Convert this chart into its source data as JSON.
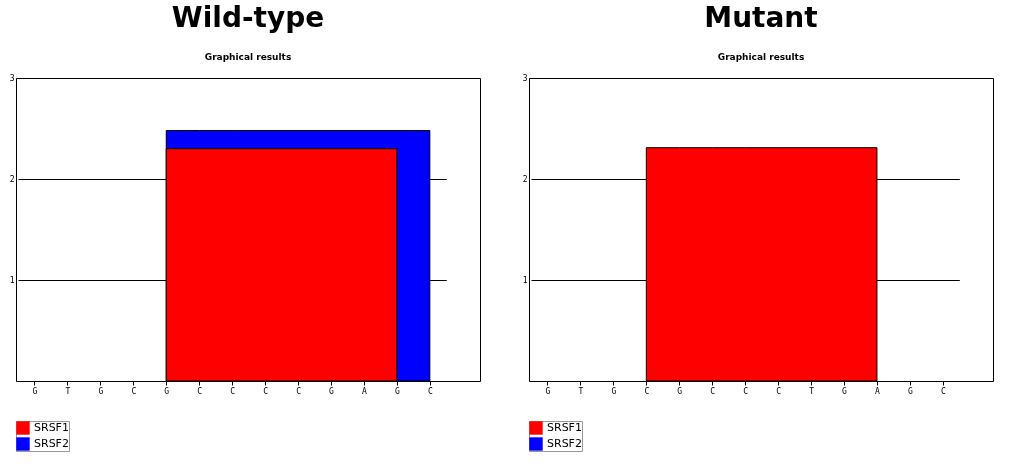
{
  "chart_data": [
    {
      "type": "area",
      "title": "Wild-type",
      "subtitle": "Graphical results",
      "categories": [
        "G",
        "T",
        "G",
        "C",
        "G",
        "C",
        "C",
        "C",
        "C",
        "G",
        "A",
        "G",
        "C"
      ],
      "series": [
        {
          "name": "SRSF1",
          "color": "#ff0000",
          "values": [
            null,
            null,
            null,
            null,
            2.3,
            2.3,
            2.3,
            2.3,
            2.3,
            2.3,
            2.3,
            2.3,
            null
          ]
        },
        {
          "name": "SRSF2",
          "color": "#0000ff",
          "values": [
            null,
            null,
            null,
            null,
            2.48,
            2.48,
            2.48,
            2.48,
            2.48,
            2.48,
            2.48,
            2.48,
            2.48
          ]
        }
      ],
      "ylim": [
        0,
        3
      ],
      "yticks": [
        1,
        2,
        3
      ],
      "grid": "y",
      "legend": "bottom left"
    },
    {
      "type": "area",
      "title": "Mutant",
      "subtitle": "Graphical results",
      "categories": [
        "G",
        "T",
        "G",
        "C",
        "G",
        "C",
        "C",
        "C",
        "T",
        "G",
        "A",
        "G",
        "C"
      ],
      "series": [
        {
          "name": "SRSF1",
          "color": "#ff0000",
          "values": [
            null,
            null,
            null,
            2.31,
            2.31,
            2.31,
            2.31,
            2.31,
            2.31,
            2.31,
            2.31,
            null,
            null
          ]
        },
        {
          "name": "SRSF2",
          "color": "#0000ff",
          "values": [
            null,
            null,
            null,
            null,
            null,
            null,
            null,
            null,
            null,
            null,
            null,
            null,
            null
          ]
        }
      ],
      "ylim": [
        0,
        3
      ],
      "yticks": [
        1,
        2,
        3
      ],
      "grid": "y",
      "legend": "bottom left"
    }
  ]
}
